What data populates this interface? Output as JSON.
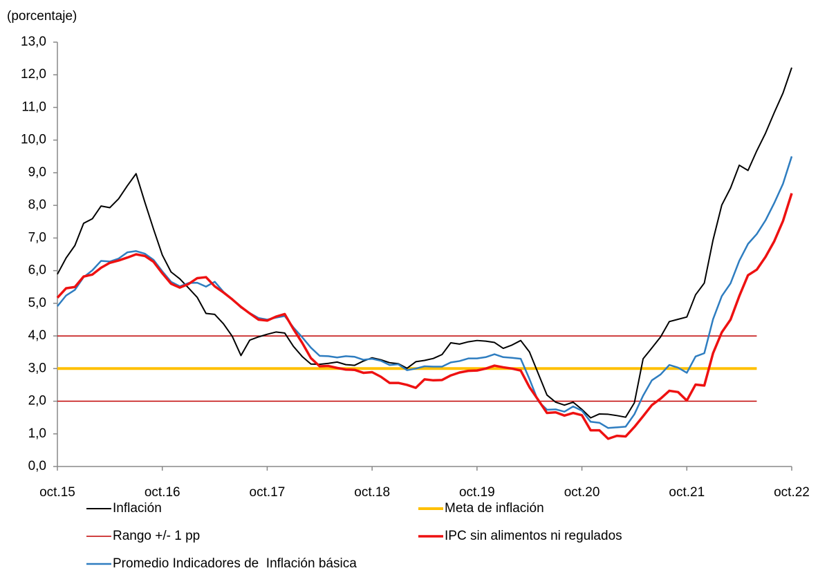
{
  "chart_data": {
    "type": "line",
    "y_axis_label": "(porcentaje)",
    "categories": [
      "oct.15",
      null,
      null,
      null,
      null,
      null,
      null,
      null,
      null,
      null,
      null,
      null,
      "oct.16",
      null,
      null,
      null,
      null,
      null,
      null,
      null,
      null,
      null,
      null,
      null,
      "oct.17",
      null,
      null,
      null,
      null,
      null,
      null,
      null,
      null,
      null,
      null,
      null,
      "oct.18",
      null,
      null,
      null,
      null,
      null,
      null,
      null,
      null,
      null,
      null,
      null,
      "oct.19",
      null,
      null,
      null,
      null,
      null,
      null,
      null,
      null,
      null,
      null,
      null,
      "oct.20",
      null,
      null,
      null,
      null,
      null,
      null,
      null,
      null,
      null,
      null,
      null,
      "oct.21",
      null,
      null,
      null,
      null,
      null,
      null,
      null,
      null,
      null,
      null,
      null,
      "oct.22"
    ],
    "ylim": [
      0,
      13
    ],
    "yticks": [
      {
        "value": 0,
        "label": "0,0"
      },
      {
        "value": 1,
        "label": "1,0"
      },
      {
        "value": 2,
        "label": "2,0"
      },
      {
        "value": 3,
        "label": "3,0"
      },
      {
        "value": 4,
        "label": "4,0"
      },
      {
        "value": 5,
        "label": "5,0"
      },
      {
        "value": 6,
        "label": "6,0"
      },
      {
        "value": 7,
        "label": "7,0"
      },
      {
        "value": 8,
        "label": "8,0"
      },
      {
        "value": 9,
        "label": "9,0"
      },
      {
        "value": 10,
        "label": "10,0"
      },
      {
        "value": 11,
        "label": "11,0"
      },
      {
        "value": 12,
        "label": "12,0"
      },
      {
        "value": 13,
        "label": "13,0"
      }
    ],
    "grid": false,
    "series": [
      {
        "name": "Rango +/- 1 pp",
        "color": "#c00000",
        "width": 1.5,
        "values": [
          4,
          4,
          4,
          4,
          4,
          4,
          4,
          4,
          4,
          4,
          4,
          4,
          4,
          4,
          4,
          4,
          4,
          4,
          4,
          4,
          4,
          4,
          4,
          4,
          4,
          4,
          4,
          4,
          4,
          4,
          4,
          4,
          4,
          4,
          4,
          4,
          4,
          4,
          4,
          4,
          4,
          4,
          4,
          4,
          4,
          4,
          4,
          4,
          4,
          4,
          4,
          4,
          4,
          4,
          4,
          4,
          4,
          4,
          4,
          4,
          4,
          4,
          4,
          4,
          4,
          4,
          4,
          4,
          4,
          4,
          4,
          4,
          4,
          4,
          4,
          4,
          4,
          4,
          4,
          4,
          4,
          null,
          null,
          null,
          null
        ],
        "lower": [
          2,
          2,
          2,
          2,
          2,
          2,
          2,
          2,
          2,
          2,
          2,
          2,
          2,
          2,
          2,
          2,
          2,
          2,
          2,
          2,
          2,
          2,
          2,
          2,
          2,
          2,
          2,
          2,
          2,
          2,
          2,
          2,
          2,
          2,
          2,
          2,
          2,
          2,
          2,
          2,
          2,
          2,
          2,
          2,
          2,
          2,
          2,
          2,
          2,
          2,
          2,
          2,
          2,
          2,
          2,
          2,
          2,
          2,
          2,
          2,
          2,
          2,
          2,
          2,
          2,
          2,
          2,
          2,
          2,
          2,
          2,
          2,
          2,
          2,
          2,
          2,
          2,
          2,
          2,
          2,
          2,
          null,
          null,
          null,
          null
        ]
      },
      {
        "name": "Meta de inflación",
        "color": "#ffc000",
        "width": 4,
        "values": [
          3,
          3,
          3,
          3,
          3,
          3,
          3,
          3,
          3,
          3,
          3,
          3,
          3,
          3,
          3,
          3,
          3,
          3,
          3,
          3,
          3,
          3,
          3,
          3,
          3,
          3,
          3,
          3,
          3,
          3,
          3,
          3,
          3,
          3,
          3,
          3,
          3,
          3,
          3,
          3,
          3,
          3,
          3,
          3,
          3,
          3,
          3,
          3,
          3,
          3,
          3,
          3,
          3,
          3,
          3,
          3,
          3,
          3,
          3,
          3,
          3,
          3,
          3,
          3,
          3,
          3,
          3,
          3,
          3,
          3,
          3,
          3,
          3,
          3,
          3,
          3,
          3,
          3,
          3,
          3,
          3,
          null,
          null,
          null,
          null
        ]
      },
      {
        "name": "Inflación",
        "color": "#000000",
        "width": 2,
        "values": [
          5.89,
          6.39,
          6.77,
          7.45,
          7.59,
          7.98,
          7.93,
          8.2,
          8.6,
          8.97,
          8.1,
          7.27,
          6.48,
          5.96,
          5.75,
          5.47,
          5.18,
          4.69,
          4.66,
          4.37,
          3.99,
          3.4,
          3.87,
          3.97,
          4.05,
          4.12,
          4.09,
          3.68,
          3.37,
          3.14,
          3.13,
          3.16,
          3.2,
          3.12,
          3.1,
          3.23,
          3.33,
          3.27,
          3.18,
          3.15,
          3.01,
          3.21,
          3.25,
          3.31,
          3.43,
          3.79,
          3.75,
          3.82,
          3.86,
          3.84,
          3.8,
          3.62,
          3.72,
          3.86,
          3.51,
          2.85,
          2.19,
          1.97,
          1.88,
          1.97,
          1.75,
          1.49,
          1.61,
          1.6,
          1.56,
          1.51,
          1.95,
          3.3,
          3.63,
          3.97,
          4.44,
          4.51,
          4.58,
          5.26,
          5.62,
          6.94,
          8.01,
          8.53,
          9.23,
          9.07,
          9.67,
          10.21,
          10.84,
          11.44,
          12.22
        ]
      },
      {
        "name": "Promedio Indicadores de  Inflación básica",
        "color": "#2e7dc0",
        "width": 2.5,
        "values": [
          4.91,
          5.24,
          5.41,
          5.8,
          6.01,
          6.3,
          6.28,
          6.37,
          6.56,
          6.6,
          6.52,
          6.33,
          5.98,
          5.66,
          5.52,
          5.62,
          5.63,
          5.51,
          5.66,
          5.35,
          5.13,
          4.87,
          4.7,
          4.55,
          4.5,
          4.56,
          4.61,
          4.26,
          3.96,
          3.64,
          3.39,
          3.38,
          3.34,
          3.38,
          3.36,
          3.27,
          3.3,
          3.24,
          3.11,
          3.13,
          2.95,
          3.0,
          3.07,
          3.06,
          3.06,
          3.19,
          3.23,
          3.31,
          3.31,
          3.35,
          3.44,
          3.35,
          3.33,
          3.3,
          2.68,
          2.0,
          1.74,
          1.75,
          1.68,
          1.84,
          1.71,
          1.37,
          1.34,
          1.18,
          1.2,
          1.22,
          1.6,
          2.17,
          2.64,
          2.82,
          3.11,
          3.03,
          2.87,
          3.37,
          3.47,
          4.51,
          5.22,
          5.61,
          6.3,
          6.82,
          7.12,
          7.54,
          8.07,
          8.66,
          9.5
        ]
      },
      {
        "name": "IPC sin alimentos ni regulados",
        "color": "#ee1111",
        "width": 3.5,
        "values": [
          5.17,
          5.46,
          5.5,
          5.82,
          5.88,
          6.09,
          6.24,
          6.31,
          6.4,
          6.5,
          6.45,
          6.27,
          5.92,
          5.6,
          5.48,
          5.59,
          5.77,
          5.8,
          5.52,
          5.33,
          5.12,
          4.89,
          4.69,
          4.5,
          4.47,
          4.59,
          4.67,
          4.21,
          3.79,
          3.32,
          3.07,
          3.08,
          3.02,
          2.97,
          2.96,
          2.87,
          2.89,
          2.75,
          2.56,
          2.56,
          2.5,
          2.41,
          2.67,
          2.64,
          2.65,
          2.79,
          2.88,
          2.93,
          2.94,
          3.0,
          3.09,
          3.04,
          3.0,
          2.94,
          2.43,
          2.04,
          1.64,
          1.66,
          1.56,
          1.64,
          1.57,
          1.11,
          1.11,
          0.85,
          0.94,
          0.92,
          1.21,
          1.54,
          1.88,
          2.08,
          2.32,
          2.28,
          2.02,
          2.51,
          2.48,
          3.47,
          4.11,
          4.5,
          5.22,
          5.86,
          6.03,
          6.42,
          6.9,
          7.52,
          8.37
        ]
      }
    ],
    "legend_order": [
      2,
      1,
      0,
      4,
      3
    ]
  }
}
